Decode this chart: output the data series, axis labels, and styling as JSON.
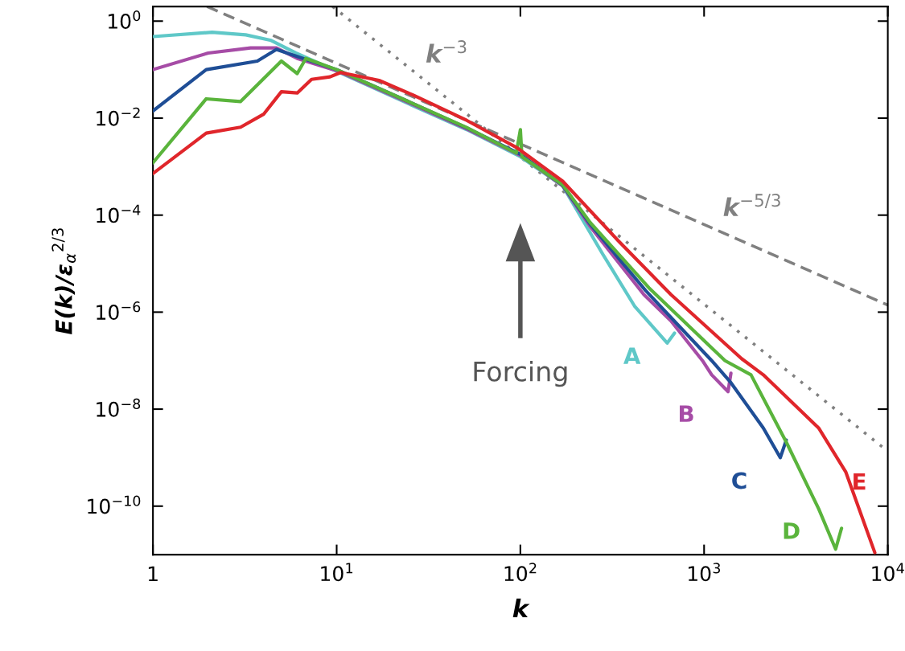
{
  "chart_data": {
    "type": "line",
    "xlabel": "k",
    "ylabel": "E(k)/ε$_{α}$$^{2/3}$",
    "log": "xy",
    "grid": false,
    "legend": false,
    "marker": "none",
    "xlim": [
      1,
      10000
    ],
    "ylim": [
      1e-11,
      2
    ],
    "xticks": [
      {
        "value": 1,
        "label": "1"
      },
      {
        "value": 10,
        "label": "10$^{1}$"
      },
      {
        "value": 100,
        "label": "10$^{2}$"
      },
      {
        "value": 1000,
        "label": "10$^{3}$"
      },
      {
        "value": 10000,
        "label": "10$^{4}$"
      }
    ],
    "yticks": [
      {
        "value": 1,
        "label": "10$^{0}$"
      },
      {
        "value": 0.01,
        "label": "10$^{−2}$"
      },
      {
        "value": 0.0001,
        "label": "10$^{−4}$"
      },
      {
        "value": 1e-06,
        "label": "10$^{−6}$"
      },
      {
        "value": 1e-08,
        "label": "10$^{−8}$"
      },
      {
        "value": 1e-10,
        "label": "10$^{−10}$"
      }
    ],
    "series": [
      {
        "name": "A",
        "color": "#5fc8c8",
        "line_style": "solid",
        "x": [
          1,
          2.1,
          3.2,
          4.4,
          6.0,
          10,
          26,
          51,
          100,
          170,
          280,
          420,
          630,
          690
        ],
        "values": [
          0.48,
          0.59,
          0.52,
          0.4,
          0.22,
          0.093,
          0.018,
          0.0058,
          0.0016,
          0.0004,
          1.6e-05,
          1.3e-06,
          2.3e-07,
          3.7e-07
        ]
      },
      {
        "name": "B",
        "color": "#a64ca6",
        "line_style": "solid",
        "x": [
          1,
          2.0,
          3.4,
          4.7,
          6.1,
          10,
          26,
          51,
          100,
          170,
          240,
          470,
          660,
          980,
          1100,
          1350,
          1400
        ],
        "values": [
          0.1,
          0.22,
          0.28,
          0.28,
          0.17,
          0.095,
          0.019,
          0.006,
          0.0017,
          0.0004,
          5.8e-05,
          2.3e-06,
          6.6e-07,
          1e-07,
          5.1e-08,
          2.3e-08,
          5.5e-08
        ]
      },
      {
        "name": "C",
        "color": "#1f4e96",
        "line_style": "solid",
        "x": [
          1,
          1.95,
          3.7,
          4.7,
          6.0,
          10,
          26,
          51,
          100,
          170,
          240,
          480,
          1100,
          1400,
          2100,
          2600,
          2800
        ],
        "values": [
          0.014,
          0.1,
          0.15,
          0.26,
          0.19,
          0.1,
          0.02,
          0.0063,
          0.0018,
          0.00041,
          6.5e-05,
          2.8e-06,
          1e-07,
          3.5e-08,
          4.1e-09,
          1e-09,
          2.3e-09
        ]
      },
      {
        "name": "D",
        "color": "#5ab43c",
        "line_style": "solid",
        "x": [
          1,
          1.95,
          3.0,
          5.0,
          6.1,
          6.8,
          10,
          26,
          51,
          95,
          100,
          102,
          170,
          240,
          500,
          1300,
          1800,
          2800,
          4200,
          5200,
          5600
        ],
        "values": [
          0.0012,
          0.025,
          0.022,
          0.15,
          0.083,
          0.17,
          0.1,
          0.02,
          0.0064,
          0.0019,
          0.0058,
          0.0016,
          0.00042,
          7e-05,
          3.2e-06,
          1e-07,
          5.1e-08,
          2.1e-09,
          8.9e-11,
          1.3e-11,
          3.5e-11
        ]
      },
      {
        "name": "E",
        "color": "#e0262b",
        "line_style": "solid",
        "x": [
          1,
          1.95,
          3.0,
          4.0,
          5.0,
          6.1,
          7.3,
          9.2,
          10.5,
          17,
          26,
          51,
          95,
          170,
          340,
          660,
          1600,
          2100,
          4200,
          5900,
          8500
        ],
        "values": [
          0.00072,
          0.0049,
          0.0065,
          0.012,
          0.035,
          0.033,
          0.063,
          0.071,
          0.087,
          0.06,
          0.03,
          0.009,
          0.0025,
          0.0005,
          3e-05,
          2.3e-06,
          1.1e-07,
          5.1e-08,
          4.1e-09,
          5.1e-10,
          1.1e-11
        ]
      },
      {
        "color": "#808080",
        "line_style": "dashed",
        "x": [
          1.97,
          10000
        ],
        "values": [
          2.0,
          1.4e-06
        ]
      },
      {
        "color": "#808080",
        "line_style": "dotted",
        "x": [
          9.5,
          10000
        ],
        "values": [
          2.0,
          1.35e-09
        ]
      }
    ],
    "annotations": [
      "k$^{−3}$",
      "k$^{−5/3}$",
      "Forcing"
    ]
  }
}
